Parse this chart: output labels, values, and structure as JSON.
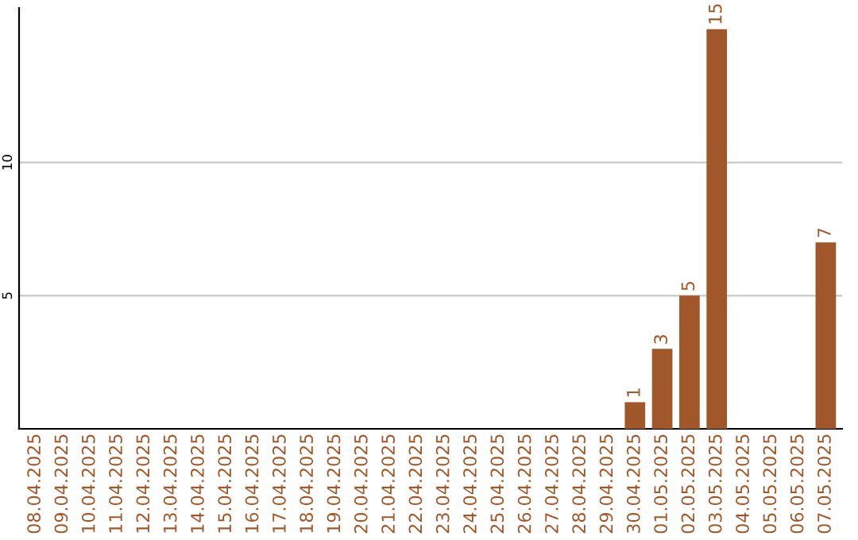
{
  "chart_data": {
    "type": "bar",
    "categories": [
      "08.04.2025",
      "09.04.2025",
      "10.04.2025",
      "11.04.2025",
      "12.04.2025",
      "13.04.2025",
      "14.04.2025",
      "15.04.2025",
      "16.04.2025",
      "17.04.2025",
      "18.04.2025",
      "19.04.2025",
      "20.04.2025",
      "21.04.2025",
      "22.04.2025",
      "23.04.2025",
      "24.04.2025",
      "25.04.2025",
      "26.04.2025",
      "27.04.2025",
      "28.04.2025",
      "29.04.2025",
      "30.04.2025",
      "01.05.2025",
      "02.05.2025",
      "03.05.2025",
      "04.05.2025",
      "05.05.2025",
      "06.05.2025",
      "07.05.2025"
    ],
    "values": [
      0,
      0,
      0,
      0,
      0,
      0,
      0,
      0,
      0,
      0,
      0,
      0,
      0,
      0,
      0,
      0,
      0,
      0,
      0,
      0,
      0,
      0,
      1,
      3,
      5,
      15,
      0,
      0,
      0,
      7
    ],
    "value_labels": [
      null,
      null,
      null,
      null,
      null,
      null,
      null,
      null,
      null,
      null,
      null,
      null,
      null,
      null,
      null,
      null,
      null,
      null,
      null,
      null,
      null,
      null,
      "1",
      "3",
      "5",
      "15",
      null,
      null,
      null,
      "7"
    ],
    "color": "#a0582a",
    "ylim": [
      0,
      15.8
    ],
    "yticks": [
      5,
      10
    ],
    "grid": "y"
  }
}
